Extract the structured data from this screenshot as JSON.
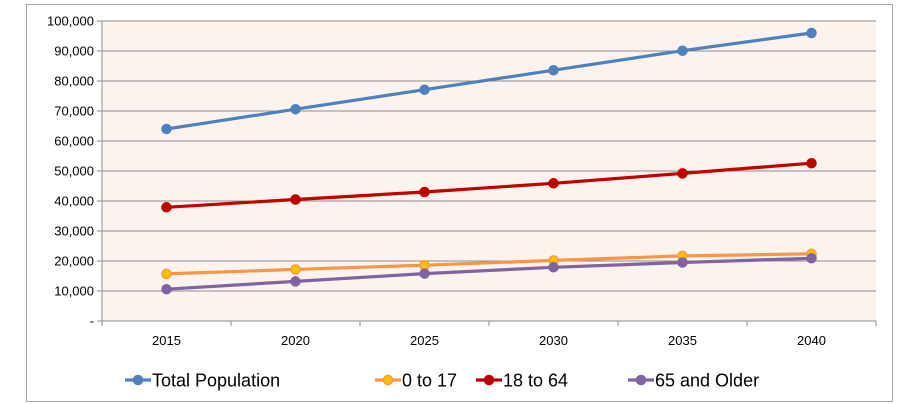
{
  "chart_data": {
    "type": "line",
    "title": "",
    "xlabel": "",
    "ylabel": "",
    "x": [
      "2015",
      "2020",
      "2025",
      "2030",
      "2035",
      "2040"
    ],
    "yticks": [
      "-",
      "10,000",
      "20,000",
      "30,000",
      "40,000",
      "50,000",
      "60,000",
      "70,000",
      "80,000",
      "90,000",
      "100,000"
    ],
    "ylim": [
      0,
      100000
    ],
    "grid": true,
    "legend_position": "bottom",
    "plot_background": "#fdf3ee",
    "series": [
      {
        "name": "Total Population",
        "color": "#4f81bd",
        "marker_fill": "#4f81bd",
        "values": [
          64000,
          70600,
          77100,
          83600,
          90100,
          96000
        ]
      },
      {
        "name": "0 to 17",
        "color": "#f79646",
        "marker_fill": "#ffc000",
        "values": [
          15700,
          17200,
          18600,
          20200,
          21700,
          22400
        ]
      },
      {
        "name": "18 to 64",
        "color": "#c00000",
        "marker_fill": "#c00000",
        "values": [
          37900,
          40500,
          43000,
          45900,
          49200,
          52600
        ]
      },
      {
        "name": "65 and Older",
        "color": "#8064a2",
        "marker_fill": "#8064a2",
        "values": [
          10600,
          13200,
          15800,
          17900,
          19500,
          20900
        ]
      }
    ]
  }
}
